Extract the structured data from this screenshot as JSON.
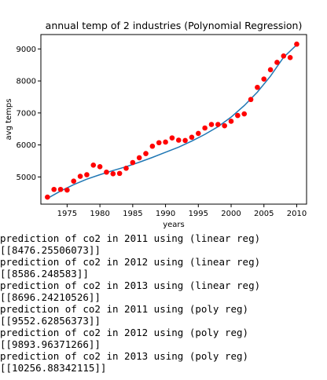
{
  "chart_data": {
    "type": "scatter",
    "title": "annual temp of 2 industries (Polynomial Regression)",
    "xlabel": "years",
    "ylabel": "avg temps",
    "xlim": [
      1971,
      2011.5
    ],
    "ylim": [
      4150,
      9450
    ],
    "xticks": [
      1975,
      1980,
      1985,
      1990,
      1995,
      2000,
      2005,
      2010
    ],
    "yticks": [
      5000,
      6000,
      7000,
      8000,
      9000
    ],
    "grid": false,
    "series": [
      {
        "kind": "scatter",
        "color": "#ff0000",
        "x": [
          1972,
          1973,
          1974,
          1975,
          1976,
          1977,
          1978,
          1979,
          1980,
          1981,
          1982,
          1983,
          1984,
          1985,
          1986,
          1987,
          1988,
          1989,
          1990,
          1991,
          1992,
          1993,
          1994,
          1995,
          1996,
          1997,
          1998,
          1999,
          2000,
          2001,
          2002,
          2003,
          2004,
          2005,
          2006,
          2007,
          2008,
          2009,
          2010
        ],
        "y": [
          4370,
          4610,
          4610,
          4590,
          4870,
          5020,
          5070,
          5370,
          5320,
          5150,
          5100,
          5110,
          5270,
          5450,
          5600,
          5730,
          5960,
          6070,
          6090,
          6220,
          6150,
          6140,
          6240,
          6360,
          6530,
          6640,
          6640,
          6600,
          6740,
          6920,
          6970,
          7420,
          7800,
          8060,
          8350,
          8580,
          8780,
          8730,
          9150
        ]
      },
      {
        "kind": "line",
        "color": "#1f77b4",
        "x": [
          1972,
          1974,
          1976,
          1978,
          1980,
          1982,
          1984,
          1986,
          1988,
          1990,
          1992,
          1994,
          1996,
          1998,
          2000,
          2002,
          2004,
          2006,
          2008,
          2010
        ],
        "y": [
          4330,
          4560,
          4760,
          4930,
          5070,
          5200,
          5320,
          5460,
          5610,
          5770,
          5930,
          6120,
          6330,
          6570,
          6870,
          7230,
          7650,
          8150,
          8740,
          9130
        ]
      }
    ]
  },
  "console": {
    "lines": [
      "prediction of co2 in 2011 using (linear reg)",
      "[[8476.25506073]]",
      "prediction of co2 in 2012 using (linear reg)",
      "[[8586.248583]]",
      "prediction of co2 in 2013 using (linear reg)",
      "[[8696.24210526]]",
      "prediction of co2 in 2011 using (poly reg)",
      "[[9552.62856373]]",
      "prediction of co2 in 2012 using (poly reg)",
      "[[9893.96371266]]",
      "prediction of co2 in 2013 using (poly reg)",
      "[[10256.88342115]]"
    ]
  }
}
